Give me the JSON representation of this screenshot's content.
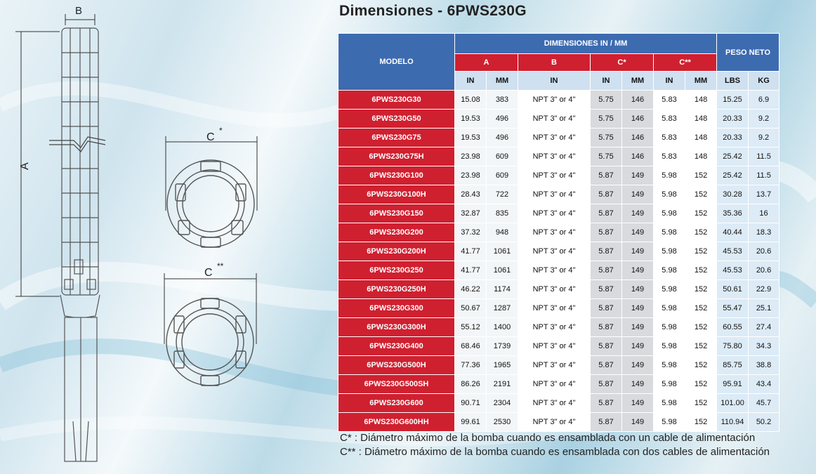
{
  "title": "Dimensiones - 6PWS230G",
  "diagram": {
    "label_b": "B",
    "label_a": "A",
    "label_c1": "C",
    "label_c1_mark": "*",
    "label_c2": "C",
    "label_c2_mark": "**"
  },
  "table": {
    "model_header": "MODELO",
    "dims_header": "DIMENSIONES IN / MM",
    "weight_header": "PESO NETO",
    "col_a": "A",
    "col_b": "B",
    "col_c1": "C*",
    "col_c2": "C**",
    "units": [
      "IN",
      "MM",
      "IN",
      "IN",
      "MM",
      "IN",
      "MM",
      "LBS",
      "KG"
    ],
    "rows": [
      {
        "model": "6PWS230G30",
        "a_in": "15.08",
        "a_mm": "383",
        "b_in": "NPT 3\" or 4\"",
        "c1_in": "5.75",
        "c1_mm": "146",
        "c2_in": "5.83",
        "c2_mm": "148",
        "lbs": "15.25",
        "kg": "6.9"
      },
      {
        "model": "6PWS230G50",
        "a_in": "19.53",
        "a_mm": "496",
        "b_in": "NPT 3\" or 4\"",
        "c1_in": "5.75",
        "c1_mm": "146",
        "c2_in": "5.83",
        "c2_mm": "148",
        "lbs": "20.33",
        "kg": "9.2"
      },
      {
        "model": "6PWS230G75",
        "a_in": "19.53",
        "a_mm": "496",
        "b_in": "NPT 3\" or 4\"",
        "c1_in": "5.75",
        "c1_mm": "146",
        "c2_in": "5.83",
        "c2_mm": "148",
        "lbs": "20.33",
        "kg": "9.2"
      },
      {
        "model": "6PWS230G75H",
        "a_in": "23.98",
        "a_mm": "609",
        "b_in": "NPT 3\" or 4\"",
        "c1_in": "5.75",
        "c1_mm": "146",
        "c2_in": "5.83",
        "c2_mm": "148",
        "lbs": "25.42",
        "kg": "11.5"
      },
      {
        "model": "6PWS230G100",
        "a_in": "23.98",
        "a_mm": "609",
        "b_in": "NPT 3\" or 4\"",
        "c1_in": "5.87",
        "c1_mm": "149",
        "c2_in": "5.98",
        "c2_mm": "152",
        "lbs": "25.42",
        "kg": "11.5"
      },
      {
        "model": "6PWS230G100H",
        "a_in": "28.43",
        "a_mm": "722",
        "b_in": "NPT 3\" or 4\"",
        "c1_in": "5.87",
        "c1_mm": "149",
        "c2_in": "5.98",
        "c2_mm": "152",
        "lbs": "30.28",
        "kg": "13.7"
      },
      {
        "model": "6PWS230G150",
        "a_in": "32.87",
        "a_mm": "835",
        "b_in": "NPT 3\" or 4\"",
        "c1_in": "5.87",
        "c1_mm": "149",
        "c2_in": "5.98",
        "c2_mm": "152",
        "lbs": "35.36",
        "kg": "16"
      },
      {
        "model": "6PWS230G200",
        "a_in": "37.32",
        "a_mm": "948",
        "b_in": "NPT 3\" or 4\"",
        "c1_in": "5.87",
        "c1_mm": "149",
        "c2_in": "5.98",
        "c2_mm": "152",
        "lbs": "40.44",
        "kg": "18.3"
      },
      {
        "model": "6PWS230G200H",
        "a_in": "41.77",
        "a_mm": "1061",
        "b_in": "NPT 3\" or 4\"",
        "c1_in": "5.87",
        "c1_mm": "149",
        "c2_in": "5.98",
        "c2_mm": "152",
        "lbs": "45.53",
        "kg": "20.6"
      },
      {
        "model": "6PWS230G250",
        "a_in": "41.77",
        "a_mm": "1061",
        "b_in": "NPT 3\" or 4\"",
        "c1_in": "5.87",
        "c1_mm": "149",
        "c2_in": "5.98",
        "c2_mm": "152",
        "lbs": "45.53",
        "kg": "20.6"
      },
      {
        "model": "6PWS230G250H",
        "a_in": "46.22",
        "a_mm": "1174",
        "b_in": "NPT 3\" or 4\"",
        "c1_in": "5.87",
        "c1_mm": "149",
        "c2_in": "5.98",
        "c2_mm": "152",
        "lbs": "50.61",
        "kg": "22.9"
      },
      {
        "model": "6PWS230G300",
        "a_in": "50.67",
        "a_mm": "1287",
        "b_in": "NPT 3\" or 4\"",
        "c1_in": "5.87",
        "c1_mm": "149",
        "c2_in": "5.98",
        "c2_mm": "152",
        "lbs": "55.47",
        "kg": "25.1"
      },
      {
        "model": "6PWS230G300H",
        "a_in": "55.12",
        "a_mm": "1400",
        "b_in": "NPT 3\" or 4\"",
        "c1_in": "5.87",
        "c1_mm": "149",
        "c2_in": "5.98",
        "c2_mm": "152",
        "lbs": "60.55",
        "kg": "27.4"
      },
      {
        "model": "6PWS230G400",
        "a_in": "68.46",
        "a_mm": "1739",
        "b_in": "NPT 3\" or 4\"",
        "c1_in": "5.87",
        "c1_mm": "149",
        "c2_in": "5.98",
        "c2_mm": "152",
        "lbs": "75.80",
        "kg": "34.3"
      },
      {
        "model": "6PWS230G500H",
        "a_in": "77.36",
        "a_mm": "1965",
        "b_in": "NPT 3\" or 4\"",
        "c1_in": "5.87",
        "c1_mm": "149",
        "c2_in": "5.98",
        "c2_mm": "152",
        "lbs": "85.75",
        "kg": "38.8"
      },
      {
        "model": "6PWS230G500SH",
        "a_in": "86.26",
        "a_mm": "2191",
        "b_in": "NPT 3\" or 4\"",
        "c1_in": "5.87",
        "c1_mm": "149",
        "c2_in": "5.98",
        "c2_mm": "152",
        "lbs": "95.91",
        "kg": "43.4"
      },
      {
        "model": "6PWS230G600",
        "a_in": "90.71",
        "a_mm": "2304",
        "b_in": "NPT 3\" or 4\"",
        "c1_in": "5.87",
        "c1_mm": "149",
        "c2_in": "5.98",
        "c2_mm": "152",
        "lbs": "101.00",
        "kg": "45.7"
      },
      {
        "model": "6PWS230G600HH",
        "a_in": "99.61",
        "a_mm": "2530",
        "b_in": "NPT 3\" or 4\"",
        "c1_in": "5.87",
        "c1_mm": "149",
        "c2_in": "5.98",
        "c2_mm": "152",
        "lbs": "110.94",
        "kg": "50.2"
      }
    ]
  },
  "notes": [
    "C* : Diámetro máximo de la bomba cuando es ensamblada con un cable de alimentación",
    "C** : Diámetro máximo de la bomba cuando es ensamblada con dos cables de alimentación"
  ],
  "colors": {
    "header_blue": "#3d6bb0",
    "model_red": "#cf2030",
    "unit_row": "#cfe0f0"
  }
}
